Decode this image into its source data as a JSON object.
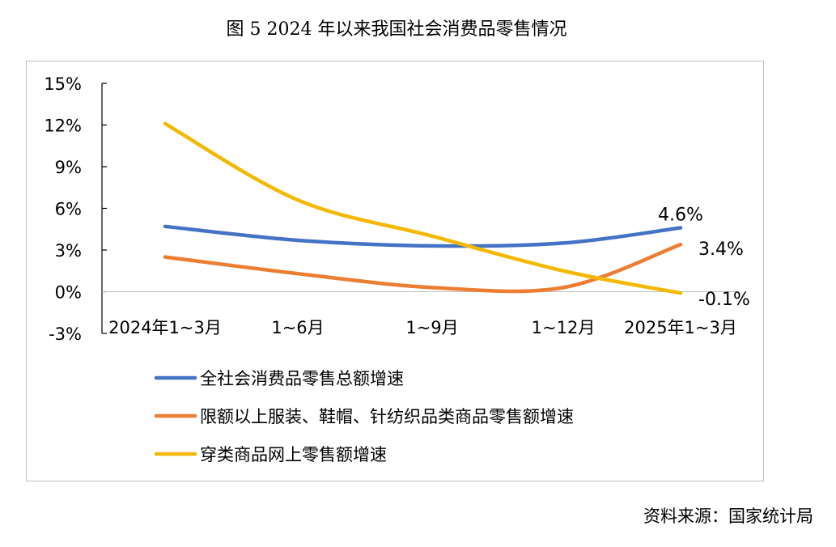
{
  "figure": {
    "title": "图 5   2024 年以来我国社会消费品零售情况",
    "source": "资料来源：国家统计局"
  },
  "chart_data": {
    "type": "line",
    "categories": [
      "2024年1~3月",
      "1~6月",
      "1~9月",
      "1~12月",
      "2025年1~3月"
    ],
    "ylim": [
      -3,
      15
    ],
    "yticks": [
      15,
      12,
      9,
      6,
      3,
      0,
      -3
    ],
    "ytick_labels": [
      "15%",
      "12%",
      "9%",
      "6%",
      "3%",
      "0%",
      "-3%"
    ],
    "grid": false,
    "legend_position": "bottom",
    "series": [
      {
        "name": "全社会消费品零售总额增速",
        "values": [
          4.7,
          3.7,
          3.3,
          3.5,
          4.6
        ],
        "color": "#4472C4",
        "end_label": "4.6%"
      },
      {
        "name": "限额以上服装、鞋帽、针纺织品类商品零售额增速",
        "values": [
          2.5,
          1.3,
          0.3,
          0.3,
          3.4
        ],
        "color": "#ED7D31",
        "end_label": "3.4%"
      },
      {
        "name": "穿类商品网上零售额增速",
        "values": [
          12.1,
          6.6,
          4.0,
          1.5,
          -0.1
        ],
        "color": "#F5B800",
        "end_label": "-0.1%"
      }
    ]
  }
}
